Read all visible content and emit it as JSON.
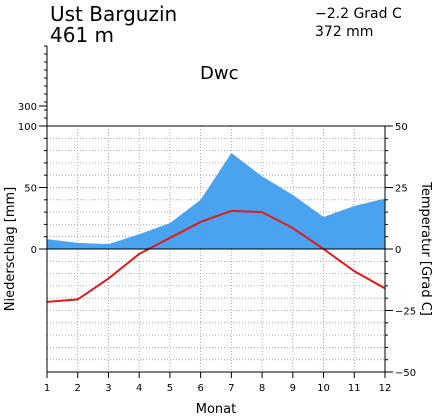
{
  "header": {
    "station": "Ust Barguzin",
    "elevation": "461 m",
    "temp_summary": "−2.2 Grad C",
    "precip_summary": "372 mm",
    "climate_class": "Dwc"
  },
  "chart_data": {
    "type": "line",
    "title": "",
    "xlabel": "Monat",
    "ylabel_left": "Niederschlag [mm]",
    "ylabel_right": "Temperatur [Grad C]",
    "months": [
      1,
      2,
      3,
      4,
      5,
      6,
      7,
      8,
      9,
      10,
      11,
      12
    ],
    "precip_ylim": [
      -100,
      100
    ],
    "temp_ylim": [
      -50,
      50
    ],
    "precip_ticks": [
      0,
      50,
      100
    ],
    "precip_extra_tick": 300,
    "temp_ticks": [
      -50,
      -25,
      0,
      25,
      50
    ],
    "grid": true,
    "series": [
      {
        "name": "Niederschlag",
        "kind": "area",
        "color": "#4aa3ef",
        "values": [
          8,
          5,
          4,
          12,
          21,
          40,
          78,
          59,
          44,
          26,
          35,
          41
        ]
      },
      {
        "name": "Temperatur",
        "kind": "line",
        "color": "#e01b1b",
        "values": [
          -21.5,
          -20.5,
          -12,
          -2,
          4.5,
          11,
          15.5,
          15,
          8.5,
          0,
          -9,
          -16
        ]
      }
    ]
  }
}
